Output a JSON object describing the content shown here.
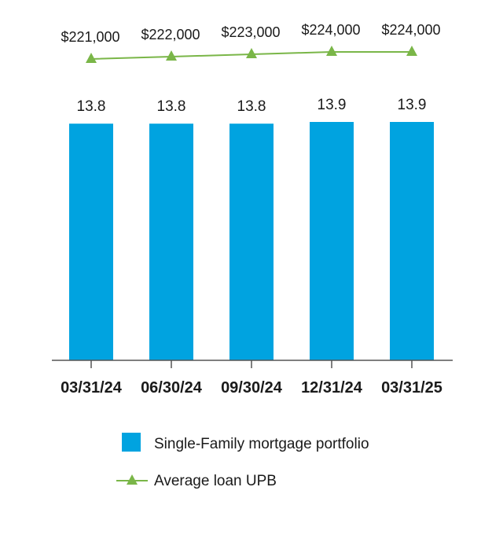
{
  "chart_data": {
    "type": "bar",
    "categories": [
      "03/31/24",
      "06/30/24",
      "09/30/24",
      "12/31/24",
      "03/31/25"
    ],
    "series": [
      {
        "name": "Single-Family mortgage portfolio",
        "kind": "bar",
        "values": [
          13.8,
          13.8,
          13.8,
          13.9,
          13.9
        ],
        "labels": [
          "13.8",
          "13.8",
          "13.8",
          "13.9",
          "13.9"
        ],
        "color": "#00A3E0"
      },
      {
        "name": "Average loan UPB",
        "kind": "line",
        "marker": "triangle",
        "values": [
          221000,
          222000,
          223000,
          224000,
          224000
        ],
        "labels": [
          "$221,000",
          "$222,000",
          "$223,000",
          "$224,000",
          "$224,000"
        ],
        "color": "#7AB648"
      }
    ],
    "legend": {
      "position": "bottom",
      "items": [
        "Single-Family mortgage portfolio",
        "Average loan UPB"
      ]
    },
    "title": "",
    "xlabel": "",
    "ylabel": "",
    "ylim": [
      0,
      13.9
    ],
    "grid": false
  }
}
